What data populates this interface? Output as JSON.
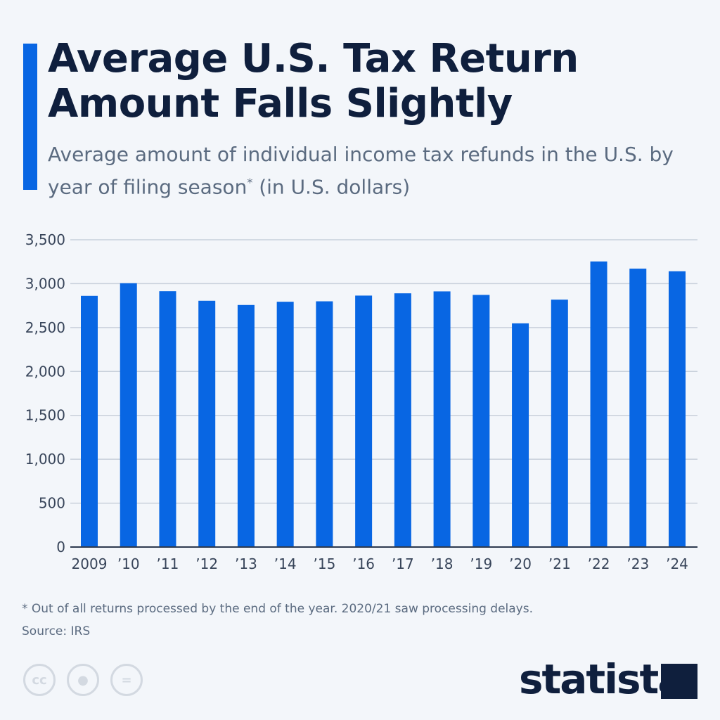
{
  "header": {
    "title": "Average U.S. Tax Return Amount Falls Slightly",
    "subtitle": "Average amount of individual income tax refunds in the U.S. by year of filing season",
    "subtitle_mark": "*",
    "subtitle_unit": " (in U.S. dollars)"
  },
  "chart_data": {
    "type": "bar",
    "categories": [
      "2009",
      "'10",
      "'11",
      "'12",
      "'13",
      "'14",
      "'15",
      "'16",
      "'17",
      "'18",
      "'19",
      "'20",
      "'21",
      "'22",
      "'23",
      "'24"
    ],
    "values": [
      2861,
      3005,
      2914,
      2805,
      2757,
      2794,
      2799,
      2864,
      2890,
      2912,
      2872,
      2548,
      2818,
      3253,
      3171,
      3141
    ],
    "ylim": [
      0,
      3500
    ],
    "yticks": [
      0,
      500,
      1000,
      1500,
      2000,
      2500,
      3000,
      3500
    ],
    "ytick_labels": [
      "0",
      "500",
      "1,000",
      "1,500",
      "2,000",
      "2,500",
      "3,000",
      "3,500"
    ],
    "grid": true,
    "bar_color": "#0866e3",
    "title": "",
    "xlabel": "",
    "ylabel": ""
  },
  "footer": {
    "note": "* Out of all returns processed by the end of the year. 2020/21 saw processing delays.",
    "source": "Source: IRS",
    "license_icons": [
      "cc",
      "by",
      "="
    ],
    "brand": "statista"
  }
}
